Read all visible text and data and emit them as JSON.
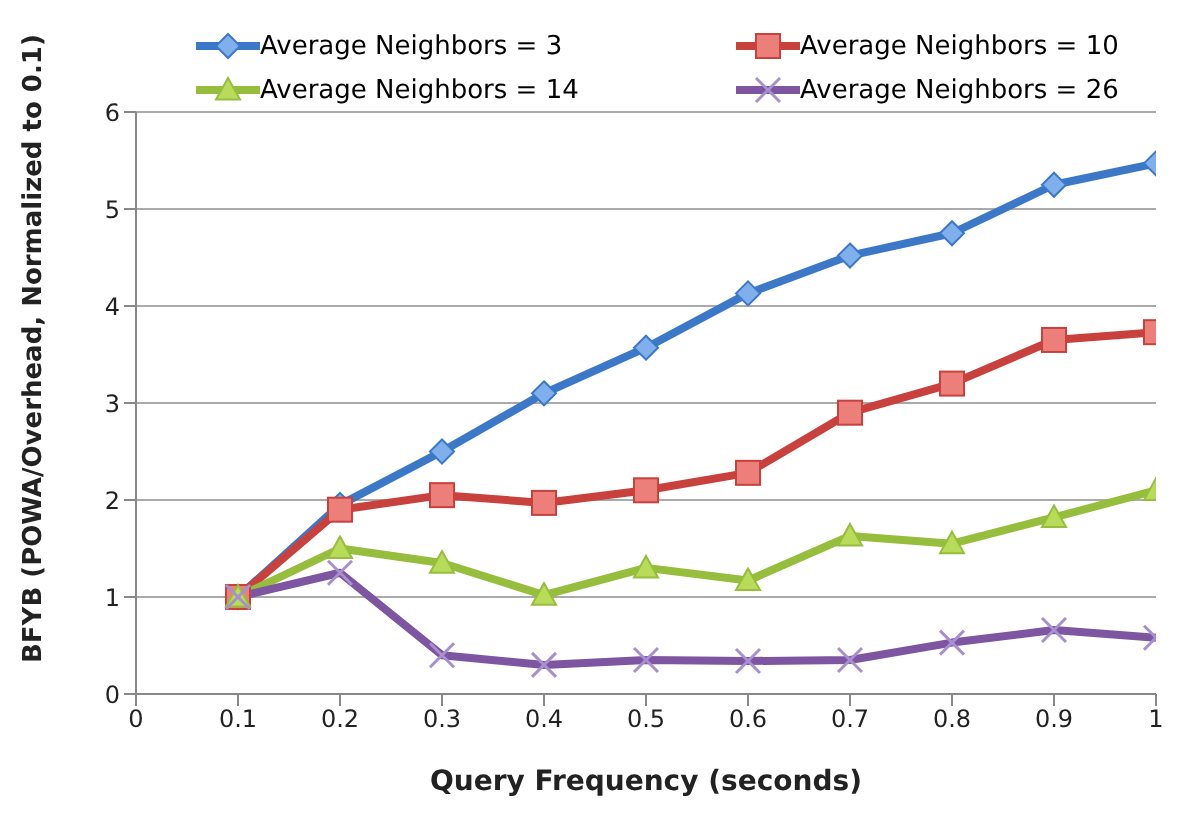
{
  "chart_data": {
    "type": "line",
    "xlabel": "Query Frequency (seconds)",
    "ylabel": "BFYB (POWA/Overhead, Normalized to 0.1)",
    "x": [
      0.1,
      0.2,
      0.3,
      0.4,
      0.5,
      0.6,
      0.7,
      0.8,
      0.9,
      1.0
    ],
    "series": [
      {
        "name": "Average Neighbors = 3",
        "color": "#3c78c8",
        "marker": "diamond",
        "values": [
          1,
          1.95,
          2.5,
          3.1,
          3.57,
          4.13,
          4.52,
          4.75,
          5.25,
          5.47
        ]
      },
      {
        "name": "Average Neighbors = 10",
        "color": "#c8413c",
        "marker": "square",
        "values": [
          1,
          1.9,
          2.05,
          1.97,
          2.1,
          2.28,
          2.9,
          3.2,
          3.65,
          3.73
        ]
      },
      {
        "name": "Average Neighbors = 14",
        "color": "#96be3c",
        "marker": "triangle",
        "values": [
          1,
          1.5,
          1.35,
          1.02,
          1.3,
          1.17,
          1.63,
          1.55,
          1.82,
          2.1
        ]
      },
      {
        "name": "Average Neighbors = 26",
        "color": "#7d55a0",
        "marker": "cross",
        "values": [
          1,
          1.25,
          0.4,
          0.3,
          0.35,
          0.34,
          0.35,
          0.53,
          0.66,
          0.58
        ]
      }
    ],
    "xlim": [
      0,
      1
    ],
    "xticks": [
      0,
      0.1,
      0.2,
      0.3,
      0.4,
      0.5,
      0.6,
      0.7,
      0.8,
      0.9,
      1
    ],
    "ylim": [
      0,
      6
    ],
    "yticks": [
      0,
      1,
      2,
      3,
      4,
      5,
      6
    ],
    "grid": "y",
    "legend": "top",
    "line_style": "solid"
  }
}
